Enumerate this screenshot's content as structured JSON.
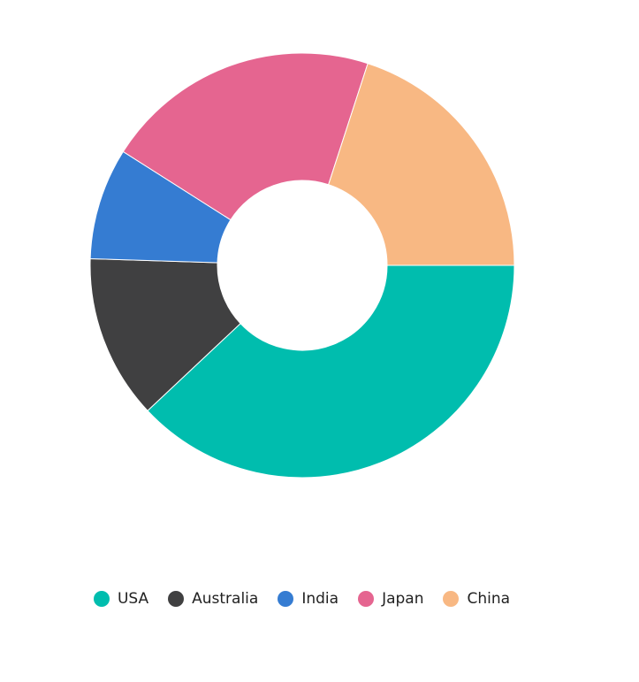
{
  "chart_data": {
    "type": "pie",
    "donut": true,
    "start_angle_deg": 0,
    "categories": [
      "USA",
      "Australia",
      "India",
      "Japan",
      "China"
    ],
    "values": [
      38,
      12.5,
      8.5,
      21,
      20
    ],
    "colors": [
      "#00bdae",
      "#404041",
      "#357cd2",
      "#e56590",
      "#f8b883"
    ],
    "title": "",
    "legend_position": "bottom"
  },
  "legend": {
    "items": [
      {
        "label": "USA",
        "color": "#00bdae"
      },
      {
        "label": "Australia",
        "color": "#404041"
      },
      {
        "label": "India",
        "color": "#357cd2"
      },
      {
        "label": "Japan",
        "color": "#e56590"
      },
      {
        "label": "China",
        "color": "#f8b883"
      }
    ]
  }
}
